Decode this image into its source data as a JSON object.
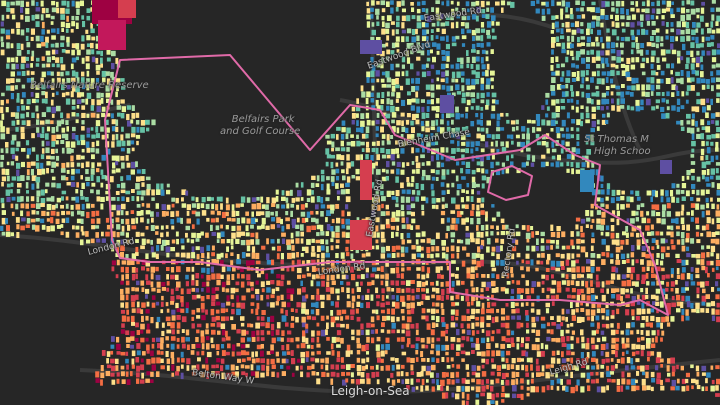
{
  "map": {
    "style": "dark",
    "background": "#262626",
    "palette": [
      "#5e4fa2",
      "#3288bd",
      "#66c2a5",
      "#abdda4",
      "#e6f598",
      "#fee08b",
      "#fdae61",
      "#f46d43",
      "#d53e4f",
      "#9e0142"
    ],
    "boundary_color": "#e06aa8",
    "road_color": "#3a3a3a",
    "labels": {
      "belfairs_nature_reserve": "Belfairs Nature Reserve",
      "belfairs_park_line1": "Belfairs Park",
      "belfairs_park_line2": "and Golf Course",
      "st_thomas_line1": "St Thomas M",
      "st_thomas_line2": "High Schoo"
    },
    "roads": {
      "eastwood_rd_top": "Eastwood Rd",
      "eastwood_blvd": "Eastwood Blvd",
      "eastwood_rd_vertical": "Eastwood Rd",
      "london_rd": "London Rd",
      "london_rd_west": "London Rd",
      "belton_way": "Belton Way W",
      "leigh_rd": "Leigh Rd",
      "rectory_rd": "Rectory Rd",
      "blenheim": "Blenheim Chase"
    },
    "town": "Leigh-on-Sea"
  }
}
